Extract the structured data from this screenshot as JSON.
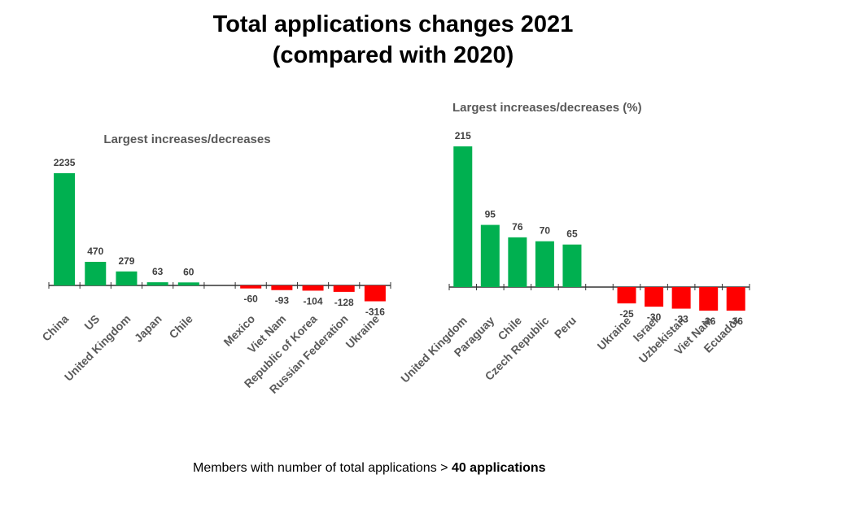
{
  "title_line1": "Total applications changes 2021",
  "title_line2": "(compared with 2020)",
  "footnote": {
    "prefix": "Members with number of total applications > ",
    "emphasis": "40 applications"
  },
  "colors": {
    "increase": "#00b050",
    "decrease": "#ff0000",
    "axis": "#333333",
    "subtitle": "#595959"
  },
  "chart_data": [
    {
      "type": "bar",
      "title": "Largest increases/decreases",
      "categories": [
        "China",
        "US",
        "United Kingdom",
        "Japan",
        "Chile",
        "",
        "Mexico",
        "Viet Nam",
        "Republic of Korea",
        "Russian Federation",
        "Ukraine"
      ],
      "values": [
        2235,
        470,
        279,
        63,
        60,
        null,
        -60,
        -93,
        -104,
        -128,
        -316
      ],
      "value_labels": [
        "2235",
        "470",
        "279",
        "63",
        "60",
        "",
        "-60",
        "-93",
        "-104",
        "-128",
        "-316"
      ],
      "ylim": [
        -350,
        2400
      ],
      "xlabel": "",
      "ylabel": "",
      "grid": false
    },
    {
      "type": "bar",
      "title": "Largest increases/decreases (%)",
      "categories": [
        "United Kingdom",
        "Paraguay",
        "Chile",
        "Czech Republic",
        "Peru",
        "",
        "Ukraine",
        "Israel",
        "Uzbekistan",
        "Viet Nam",
        "Ecuador"
      ],
      "values": [
        215,
        95,
        76,
        70,
        65,
        null,
        -25,
        -30,
        -33,
        -36,
        -36
      ],
      "value_labels": [
        "215",
        "95",
        "76",
        "70",
        "65",
        "",
        "-25",
        "-30",
        "-33",
        "-36",
        "-36"
      ],
      "ylim": [
        -45,
        230
      ],
      "xlabel": "",
      "ylabel": "",
      "grid": false
    }
  ]
}
